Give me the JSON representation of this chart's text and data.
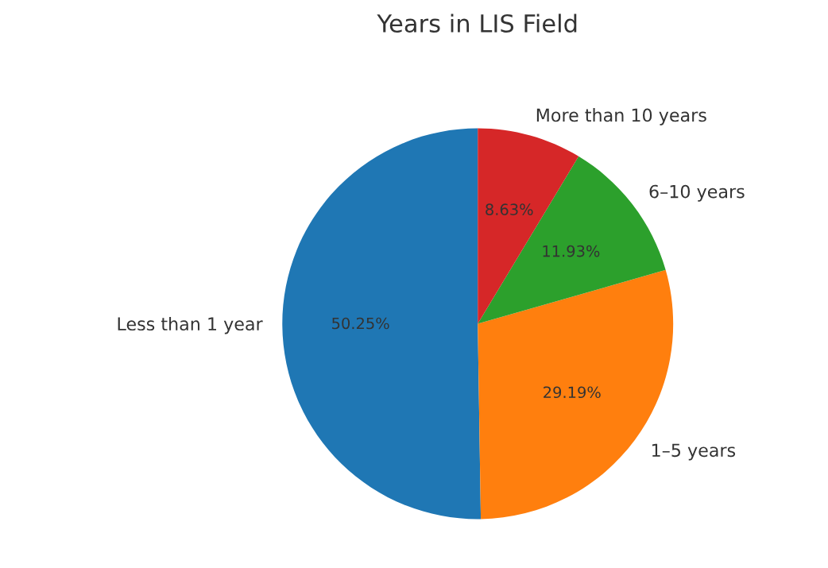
{
  "chart_data": {
    "type": "pie",
    "title": "Years in LIS Field",
    "categories": [
      "Less than 1 year",
      "1–5 years",
      "6–10 years",
      "More than 10 years"
    ],
    "values": [
      50.25,
      29.19,
      11.93,
      8.63
    ],
    "colors": [
      "#1f77b4",
      "#ff7f0e",
      "#2ca02c",
      "#d62728"
    ],
    "value_labels": [
      "50.25%",
      "29.19%",
      "11.93%",
      "8.63%"
    ]
  }
}
